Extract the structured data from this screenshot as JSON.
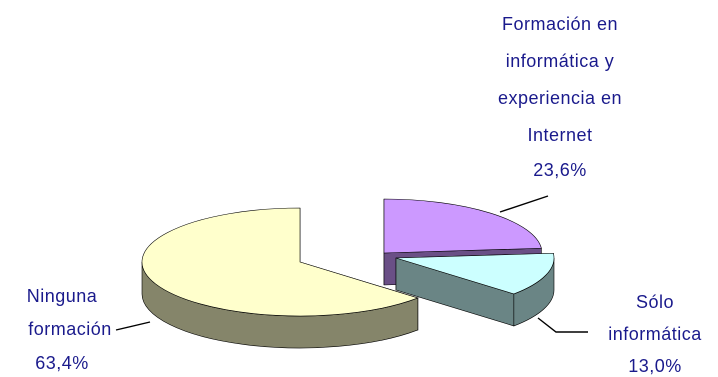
{
  "chart_data": {
    "type": "pie",
    "style": "3d-exploded",
    "slices": [
      {
        "label_lines": [
          "Formación en",
          "informática y",
          "experiencia en",
          "Internet"
        ],
        "percent_text": "23,6%",
        "value": 23.6,
        "top_color": "#cc99ff",
        "side_color": "#6a4f86"
      },
      {
        "label_lines": [
          "Sólo",
          "informática"
        ],
        "percent_text": "13,0%",
        "value": 13.0,
        "top_color": "#ccffff",
        "side_color": "#6a8585"
      },
      {
        "label_lines": [
          "Ninguna",
          "formación"
        ],
        "percent_text": "63,4%",
        "value": 63.4,
        "top_color": "#ffffcc",
        "side_color": "#85856a"
      }
    ],
    "label_color": "#1a1a8c",
    "legend": "none"
  }
}
